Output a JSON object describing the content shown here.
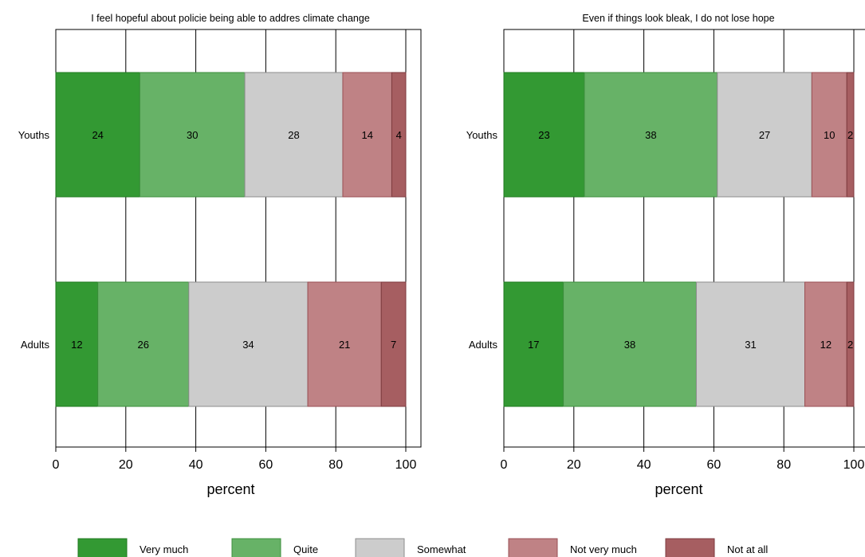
{
  "chart_data": [
    {
      "type": "bar",
      "orientation": "horizontal",
      "stacked": true,
      "title": "I feel hopeful about policie being able to addres climate change",
      "xlabel": "percent",
      "ylabel": "",
      "xlim": [
        0,
        100
      ],
      "xticks": [
        "0",
        "20",
        "40",
        "60",
        "80",
        "100"
      ],
      "grid": true,
      "categories": [
        "Youths",
        "Adults"
      ],
      "series": [
        {
          "name": "Very much",
          "values": [
            24,
            12
          ]
        },
        {
          "name": "Quite",
          "values": [
            30,
            26
          ]
        },
        {
          "name": "Somewhat",
          "values": [
            28,
            34
          ]
        },
        {
          "name": "Not very much",
          "values": [
            14,
            21
          ]
        },
        {
          "name": "Not at all",
          "values": [
            4,
            7
          ]
        }
      ]
    },
    {
      "type": "bar",
      "orientation": "horizontal",
      "stacked": true,
      "title": "Even if things look bleak, I do not lose hope",
      "xlabel": "percent",
      "ylabel": "",
      "xlim": [
        0,
        100
      ],
      "xticks": [
        "0",
        "20",
        "40",
        "60",
        "80",
        "100"
      ],
      "grid": true,
      "categories": [
        "Youths",
        "Adults"
      ],
      "series": [
        {
          "name": "Very much",
          "values": [
            23,
            17
          ]
        },
        {
          "name": "Quite",
          "values": [
            38,
            38
          ]
        },
        {
          "name": "Somewhat",
          "values": [
            27,
            31
          ]
        },
        {
          "name": "Not very much",
          "values": [
            10,
            12
          ]
        },
        {
          "name": "Not at all",
          "values": [
            2,
            2
          ]
        }
      ]
    }
  ],
  "legend": {
    "placement": "bottom",
    "entries": [
      "Very much",
      "Quite",
      "Somewhat",
      "Not very much",
      "Not at all"
    ]
  },
  "colors": {
    "Very much": {
      "fill": "#339933",
      "stroke": "#1f7a1f"
    },
    "Quite": {
      "fill": "#67b267",
      "stroke": "#3d8f3d"
    },
    "Somewhat": {
      "fill": "#cccccc",
      "stroke": "#8c8c8c"
    },
    "Not very much": {
      "fill": "#bf8285",
      "stroke": "#9a4f54"
    },
    "Not at all": {
      "fill": "#a65e61",
      "stroke": "#7d3b3f"
    }
  }
}
